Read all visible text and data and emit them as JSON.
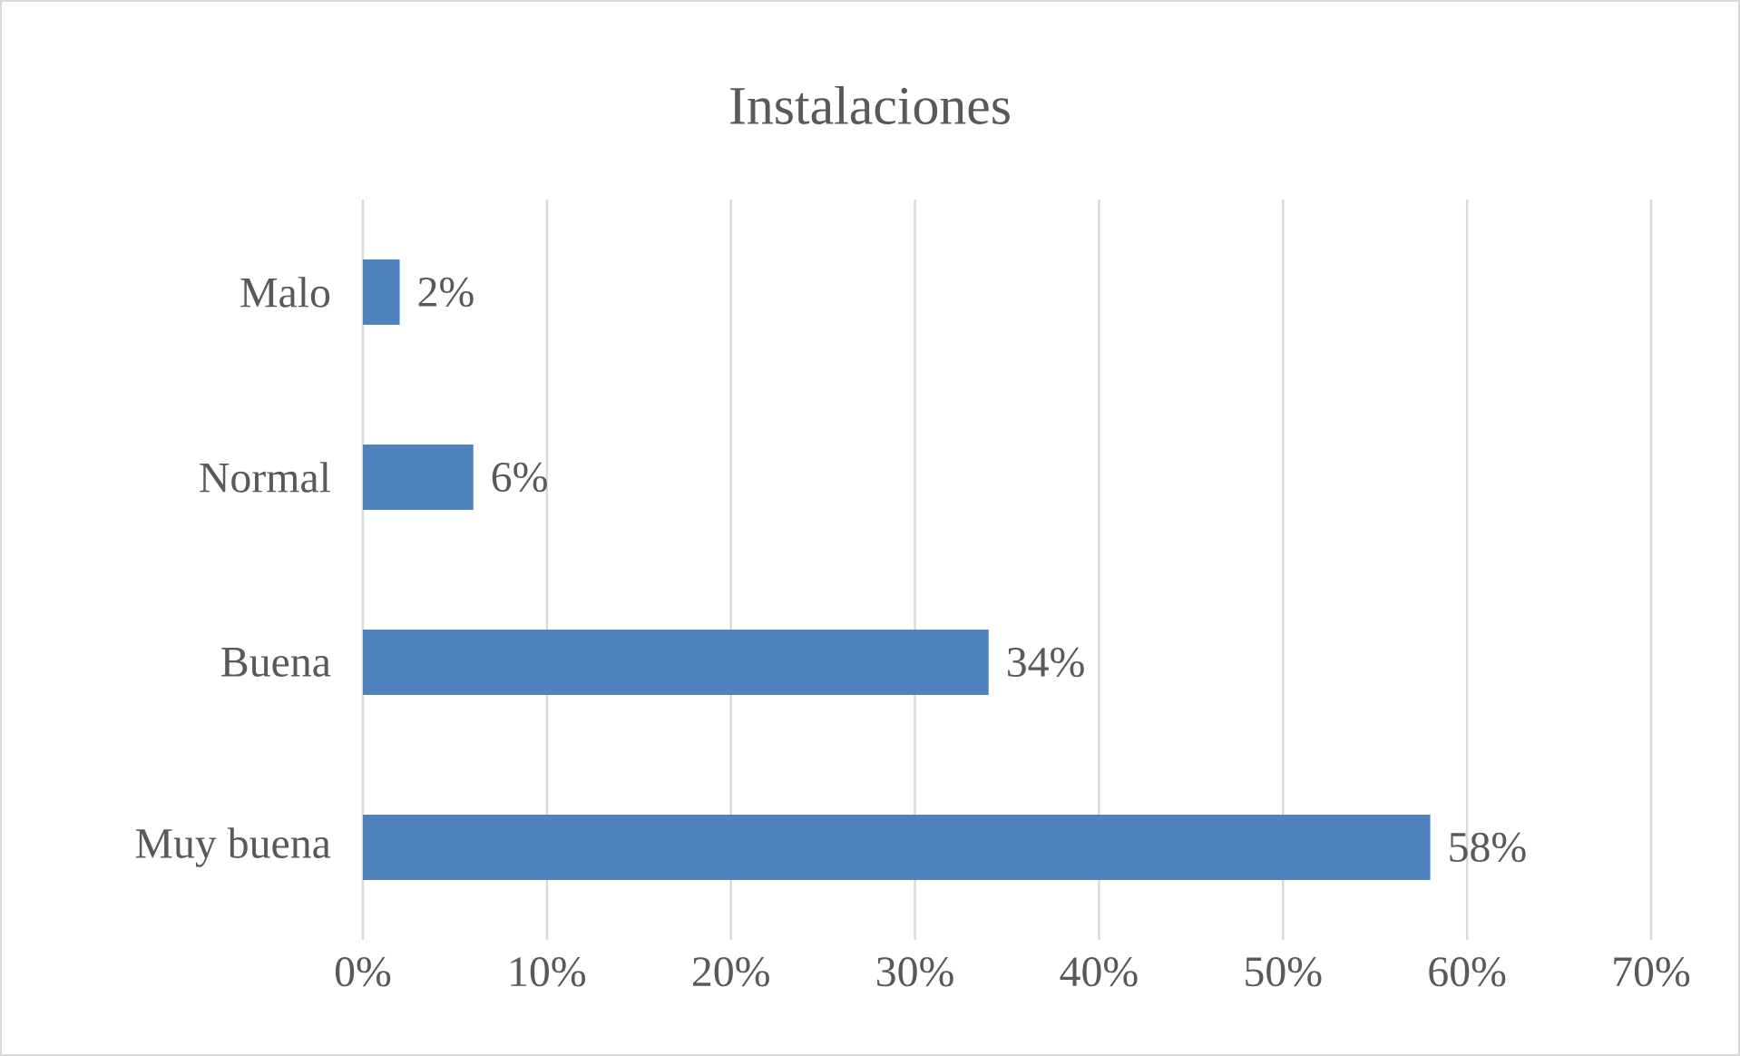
{
  "chart_data": {
    "type": "bar",
    "orientation": "horizontal",
    "title": "Instalaciones",
    "categories": [
      "Malo",
      "Normal",
      "Buena",
      "Muy buena"
    ],
    "values": [
      2,
      6,
      34,
      58
    ],
    "value_labels": [
      "2%",
      "6%",
      "34%",
      "58%"
    ],
    "color": "#4f81bd",
    "xlim": [
      0,
      70
    ],
    "xticks": [
      {
        "value": 0,
        "label": "0%"
      },
      {
        "value": 10,
        "label": "10%"
      },
      {
        "value": 20,
        "label": "20%"
      },
      {
        "value": 30,
        "label": "30%"
      },
      {
        "value": 40,
        "label": "40%"
      },
      {
        "value": 50,
        "label": "50%"
      },
      {
        "value": 60,
        "label": "60%"
      },
      {
        "value": 70,
        "label": "70%"
      }
    ],
    "grid": "x"
  }
}
